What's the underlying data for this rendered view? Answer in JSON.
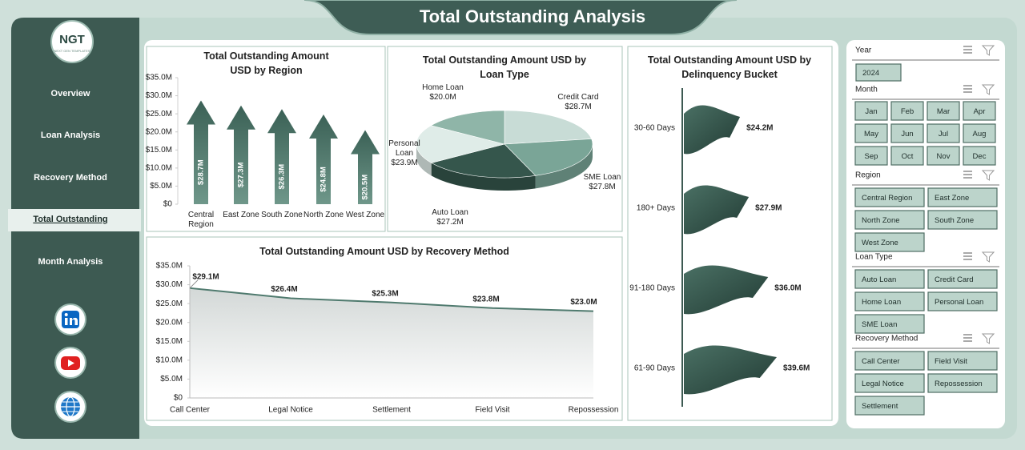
{
  "header": {
    "title": "Total Outstanding  Analysis"
  },
  "sidebar": {
    "logo": "NGT",
    "logo_tagline": "NEXT GEN TEMPLATES",
    "menu": [
      "Overview",
      "Loan Analysis",
      "Recovery Method",
      "Total Outstanding",
      "Month Analysis"
    ]
  },
  "chart_data": [
    {
      "type": "bar",
      "title": "Total Outstanding Amount USD by Region",
      "categories": [
        "Central Region",
        "East Zone",
        "South Zone",
        "North Zone",
        "West Zone"
      ],
      "values": [
        28.7,
        27.3,
        26.3,
        24.8,
        20.5
      ],
      "value_labels": [
        "$28.7M",
        "$27.3M",
        "$26.3M",
        "$24.8M",
        "$20.5M"
      ],
      "color": "#4a7468",
      "ylim": [
        0,
        35
      ],
      "yticks": [
        {
          "value": 0,
          "label": "$0"
        },
        {
          "value": 5,
          "label": "$5.0M"
        },
        {
          "value": 10,
          "label": "$10.0M"
        },
        {
          "value": 15,
          "label": "$15.0M"
        },
        {
          "value": 20,
          "label": "$20.0M"
        },
        {
          "value": 25,
          "label": "$25.0M"
        },
        {
          "value": 30,
          "label": "$30.0M"
        },
        {
          "value": 35,
          "label": "$35.0M"
        }
      ]
    },
    {
      "type": "pie",
      "title": "Total Outstanding Amount USD by Loan Type",
      "categories": [
        "Credit Card",
        "SME Loan",
        "Auto Loan",
        "Personal Loan",
        "Home Loan"
      ],
      "values": [
        28.7,
        27.8,
        27.2,
        23.9,
        20.0
      ],
      "value_labels": [
        "$28.7M",
        "$27.8M",
        "$27.2M",
        "$23.9M",
        "$20.0M"
      ],
      "colors": [
        "#c8dcd6",
        "#7aa597",
        "#35564c",
        "#dfece8",
        "#8fb5a8"
      ]
    },
    {
      "type": "bar",
      "orientation": "horizontal",
      "title": "Total Outstanding Amount USD by Delinquency Bucket",
      "categories": [
        "30-60 Days",
        "180+ Days",
        "91-180 Days",
        "61-90 Days"
      ],
      "values": [
        24.2,
        27.9,
        36.0,
        39.6
      ],
      "value_labels": [
        "$24.2M",
        "$27.9M",
        "$36.0M",
        "$39.6M"
      ],
      "color": "#3f6158"
    },
    {
      "type": "area",
      "title": "Total Outstanding Amount USD by Recovery Method",
      "categories": [
        "Call Center",
        "Legal Notice",
        "Settlement",
        "Field Visit",
        "Repossession"
      ],
      "values": [
        29.1,
        26.4,
        25.3,
        23.8,
        23.0
      ],
      "value_labels": [
        "$29.1M",
        "$26.4M",
        "$25.3M",
        "$23.8M",
        "$23.0M"
      ],
      "color": "#4f7a6e",
      "ylim": [
        0,
        35
      ],
      "yticks": [
        {
          "value": 0,
          "label": "$0"
        },
        {
          "value": 5,
          "label": "$5.0M"
        },
        {
          "value": 10,
          "label": "$10.0M"
        },
        {
          "value": 15,
          "label": "$15.0M"
        },
        {
          "value": 20,
          "label": "$20.0M"
        },
        {
          "value": 25,
          "label": "$25.0M"
        },
        {
          "value": 30,
          "label": "$30.0M"
        },
        {
          "value": 35,
          "label": "$35.0M"
        }
      ]
    }
  ],
  "slicers": [
    {
      "title": "Year",
      "items": [
        "2024"
      ]
    },
    {
      "title": "Month",
      "items": [
        "Jan",
        "Feb",
        "Mar",
        "Apr",
        "May",
        "Jun",
        "Jul",
        "Aug",
        "Sep",
        "Oct",
        "Nov",
        "Dec"
      ]
    },
    {
      "title": "Region",
      "items": [
        "Central Region",
        "East Zone",
        "North Zone",
        "South Zone",
        "West Zone"
      ]
    },
    {
      "title": "Loan Type",
      "items": [
        "Auto Loan",
        "Credit Card",
        "Home Loan",
        "Personal Loan",
        "SME Loan"
      ]
    },
    {
      "title": "Recovery Method",
      "items": [
        "Call Center",
        "Field Visit",
        "Legal Notice",
        "Repossession",
        "Settlement"
      ]
    }
  ]
}
